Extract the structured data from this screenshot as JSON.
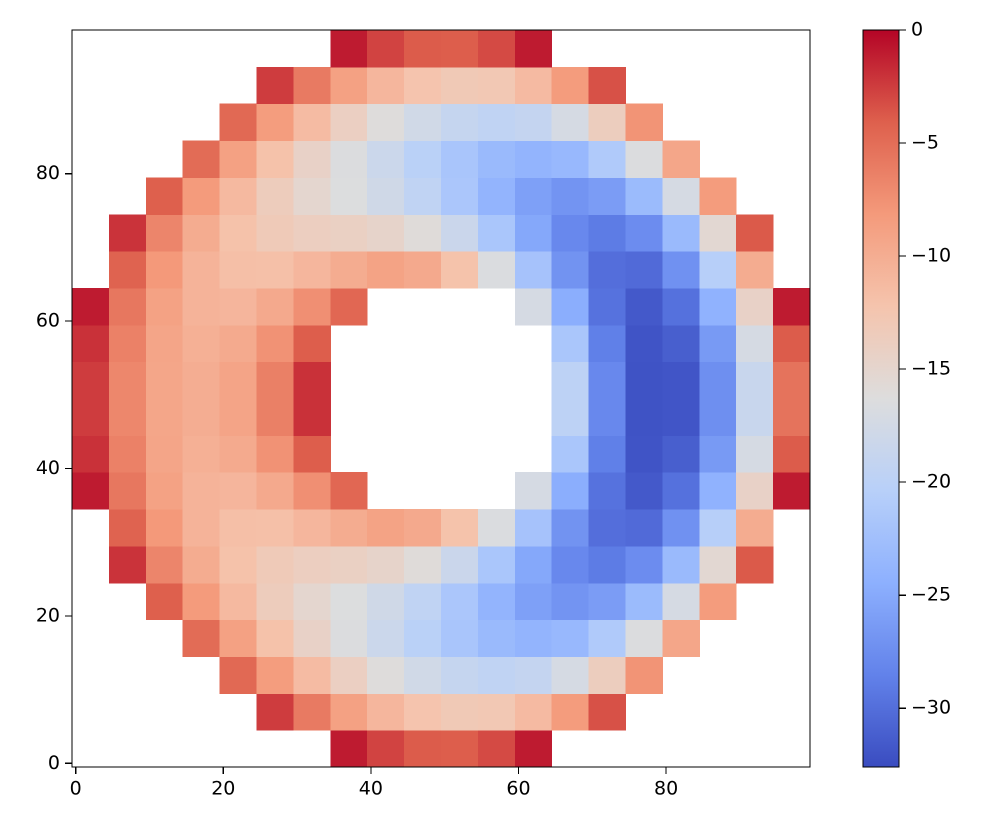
{
  "chart_data": {
    "type": "heatmap",
    "colormap": "coolwarm",
    "xbins": [
      -0.5,
      4.5,
      9.5,
      14.5,
      19.5,
      24.5,
      29.5,
      34.5,
      39.5,
      44.5,
      49.5,
      54.5,
      59.5,
      64.5,
      69.5,
      74.5,
      79.5,
      84.5,
      89.5,
      94.5,
      99.5
    ],
    "ybins": [
      -0.5,
      4.5,
      9.5,
      14.5,
      19.5,
      24.5,
      29.5,
      34.5,
      39.5,
      44.5,
      49.5,
      54.5,
      59.5,
      64.5,
      69.5,
      74.5,
      79.5,
      84.5,
      89.5,
      94.5,
      99.5
    ],
    "z": [
      [
        null,
        null,
        null,
        null,
        null,
        null,
        null,
        -1.0,
        -2.8,
        -3.9,
        -4.0,
        -3.1,
        -1.0,
        null,
        null,
        null,
        null,
        null,
        null,
        null
      ],
      [
        null,
        null,
        null,
        null,
        null,
        -2.5,
        -5.9,
        -8.8,
        -10.9,
        -12.3,
        -13.0,
        -12.8,
        -11.3,
        -8.3,
        -3.4,
        null,
        null,
        null,
        null,
        null
      ],
      [
        null,
        null,
        null,
        null,
        -4.7,
        -8.4,
        -11.4,
        -14.0,
        -16.1,
        -17.7,
        -18.9,
        -19.5,
        -19.1,
        -17.2,
        -13.7,
        -7.7,
        null,
        null,
        null,
        null
      ],
      [
        null,
        null,
        null,
        -4.9,
        -8.8,
        -12.0,
        -14.4,
        -16.5,
        -18.3,
        -20.1,
        -21.8,
        -23.2,
        -23.9,
        -23.4,
        -21.1,
        -16.5,
        -9.3,
        null,
        null,
        null
      ],
      [
        null,
        null,
        -4.1,
        -8.2,
        -11.2,
        -13.5,
        -15.1,
        -16.4,
        -17.8,
        -19.5,
        -21.6,
        -23.9,
        -25.9,
        -26.9,
        -26.2,
        -23.1,
        -17.2,
        -8.3,
        null,
        null
      ],
      [
        null,
        -2.1,
        -6.7,
        -9.9,
        -12.0,
        -13.2,
        -13.8,
        -14.1,
        -14.7,
        -16.0,
        -18.4,
        -21.7,
        -25.2,
        -28.0,
        -29.0,
        -27.6,
        -23.2,
        -15.4,
        -3.8,
        null
      ],
      [
        null,
        -4.3,
        -8.1,
        -10.6,
        -11.7,
        -11.8,
        -10.9,
        -9.9,
        -9.0,
        -9.6,
        -12.1,
        -16.6,
        -22.1,
        -27.0,
        -30.0,
        -30.3,
        -27.2,
        -20.5,
        -9.9,
        null
      ],
      [
        -1.0,
        -5.7,
        -8.9,
        -10.6,
        -10.8,
        -9.6,
        -7.4,
        -4.6,
        null,
        null,
        null,
        null,
        -17.2,
        -24.6,
        -29.7,
        -31.6,
        -29.8,
        -24.2,
        -14.4,
        -1.0
      ],
      [
        -2.0,
        -6.4,
        -9.2,
        -10.3,
        -9.7,
        -7.6,
        -4.0,
        null,
        null,
        null,
        null,
        null,
        null,
        -21.7,
        -28.7,
        -32.0,
        -31.2,
        -26.4,
        -17.2,
        -3.9
      ],
      [
        -2.5,
        -6.8,
        -9.3,
        -10.0,
        -9.1,
        -6.3,
        -2.0,
        null,
        null,
        null,
        null,
        null,
        null,
        -19.8,
        -28.0,
        -32.1,
        -31.9,
        -27.4,
        -18.6,
        -5.4
      ],
      [
        -2.5,
        -6.8,
        -9.3,
        -10.0,
        -9.1,
        -6.3,
        -2.0,
        null,
        null,
        null,
        null,
        null,
        null,
        -19.8,
        -28.0,
        -32.1,
        -31.9,
        -27.4,
        -18.6,
        -5.4
      ],
      [
        -2.0,
        -6.4,
        -9.2,
        -10.3,
        -9.7,
        -7.6,
        -4.0,
        null,
        null,
        null,
        null,
        null,
        null,
        -21.7,
        -28.7,
        -32.0,
        -31.2,
        -26.4,
        -17.2,
        -3.9
      ],
      [
        -1.0,
        -5.7,
        -8.9,
        -10.6,
        -10.8,
        -9.6,
        -7.4,
        -4.6,
        null,
        null,
        null,
        null,
        -17.2,
        -24.6,
        -29.7,
        -31.6,
        -29.8,
        -24.2,
        -14.4,
        -1.0
      ],
      [
        null,
        -4.3,
        -8.1,
        -10.6,
        -11.7,
        -11.8,
        -10.9,
        -9.9,
        -9.0,
        -9.6,
        -12.1,
        -16.6,
        -22.1,
        -27.0,
        -30.0,
        -30.3,
        -27.2,
        -20.5,
        -9.9,
        null
      ],
      [
        null,
        -2.1,
        -6.7,
        -9.9,
        -12.0,
        -13.2,
        -13.8,
        -14.1,
        -14.7,
        -16.0,
        -18.4,
        -21.7,
        -25.2,
        -28.0,
        -29.0,
        -27.6,
        -23.2,
        -15.4,
        -3.8,
        null
      ],
      [
        null,
        null,
        -4.1,
        -8.2,
        -11.2,
        -13.5,
        -15.1,
        -16.4,
        -17.8,
        -19.5,
        -21.6,
        -23.9,
        -25.9,
        -26.9,
        -26.2,
        -23.1,
        -17.2,
        -8.3,
        null,
        null
      ],
      [
        null,
        null,
        null,
        -4.9,
        -8.8,
        -12.0,
        -14.4,
        -16.5,
        -18.3,
        -20.1,
        -21.8,
        -23.2,
        -23.9,
        -23.4,
        -21.1,
        -16.5,
        -9.3,
        null,
        null,
        null
      ],
      [
        null,
        null,
        null,
        null,
        -4.7,
        -8.4,
        -11.4,
        -14.0,
        -16.1,
        -17.7,
        -18.9,
        -19.5,
        -19.1,
        -17.2,
        -13.7,
        -7.7,
        null,
        null,
        null,
        null
      ],
      [
        null,
        null,
        null,
        null,
        null,
        -2.5,
        -5.9,
        -8.8,
        -10.9,
        -12.3,
        -13.0,
        -12.8,
        -11.3,
        -8.3,
        -3.4,
        null,
        null,
        null,
        null,
        null
      ],
      [
        null,
        null,
        null,
        null,
        null,
        null,
        null,
        -1.0,
        -2.8,
        -3.9,
        -4.0,
        -3.1,
        -1.0,
        null,
        null,
        null,
        null,
        null,
        null,
        null
      ]
    ],
    "xlim": [
      -0.5,
      99.5
    ],
    "ylim": [
      -0.5,
      99.5
    ],
    "xticks": [
      0,
      20,
      40,
      60,
      80
    ],
    "yticks": [
      0,
      20,
      40,
      60,
      80
    ],
    "clim": [
      -32.6,
      0
    ],
    "colorbar_ticks": [
      0,
      {
        "value": -5,
        "label": "−5"
      },
      {
        "value": -10,
        "label": "−10"
      },
      {
        "value": -15,
        "label": "−15"
      },
      {
        "value": -20,
        "label": "−20"
      },
      {
        "value": -25,
        "label": "−25"
      },
      {
        "value": -30,
        "label": "−30"
      }
    ]
  }
}
